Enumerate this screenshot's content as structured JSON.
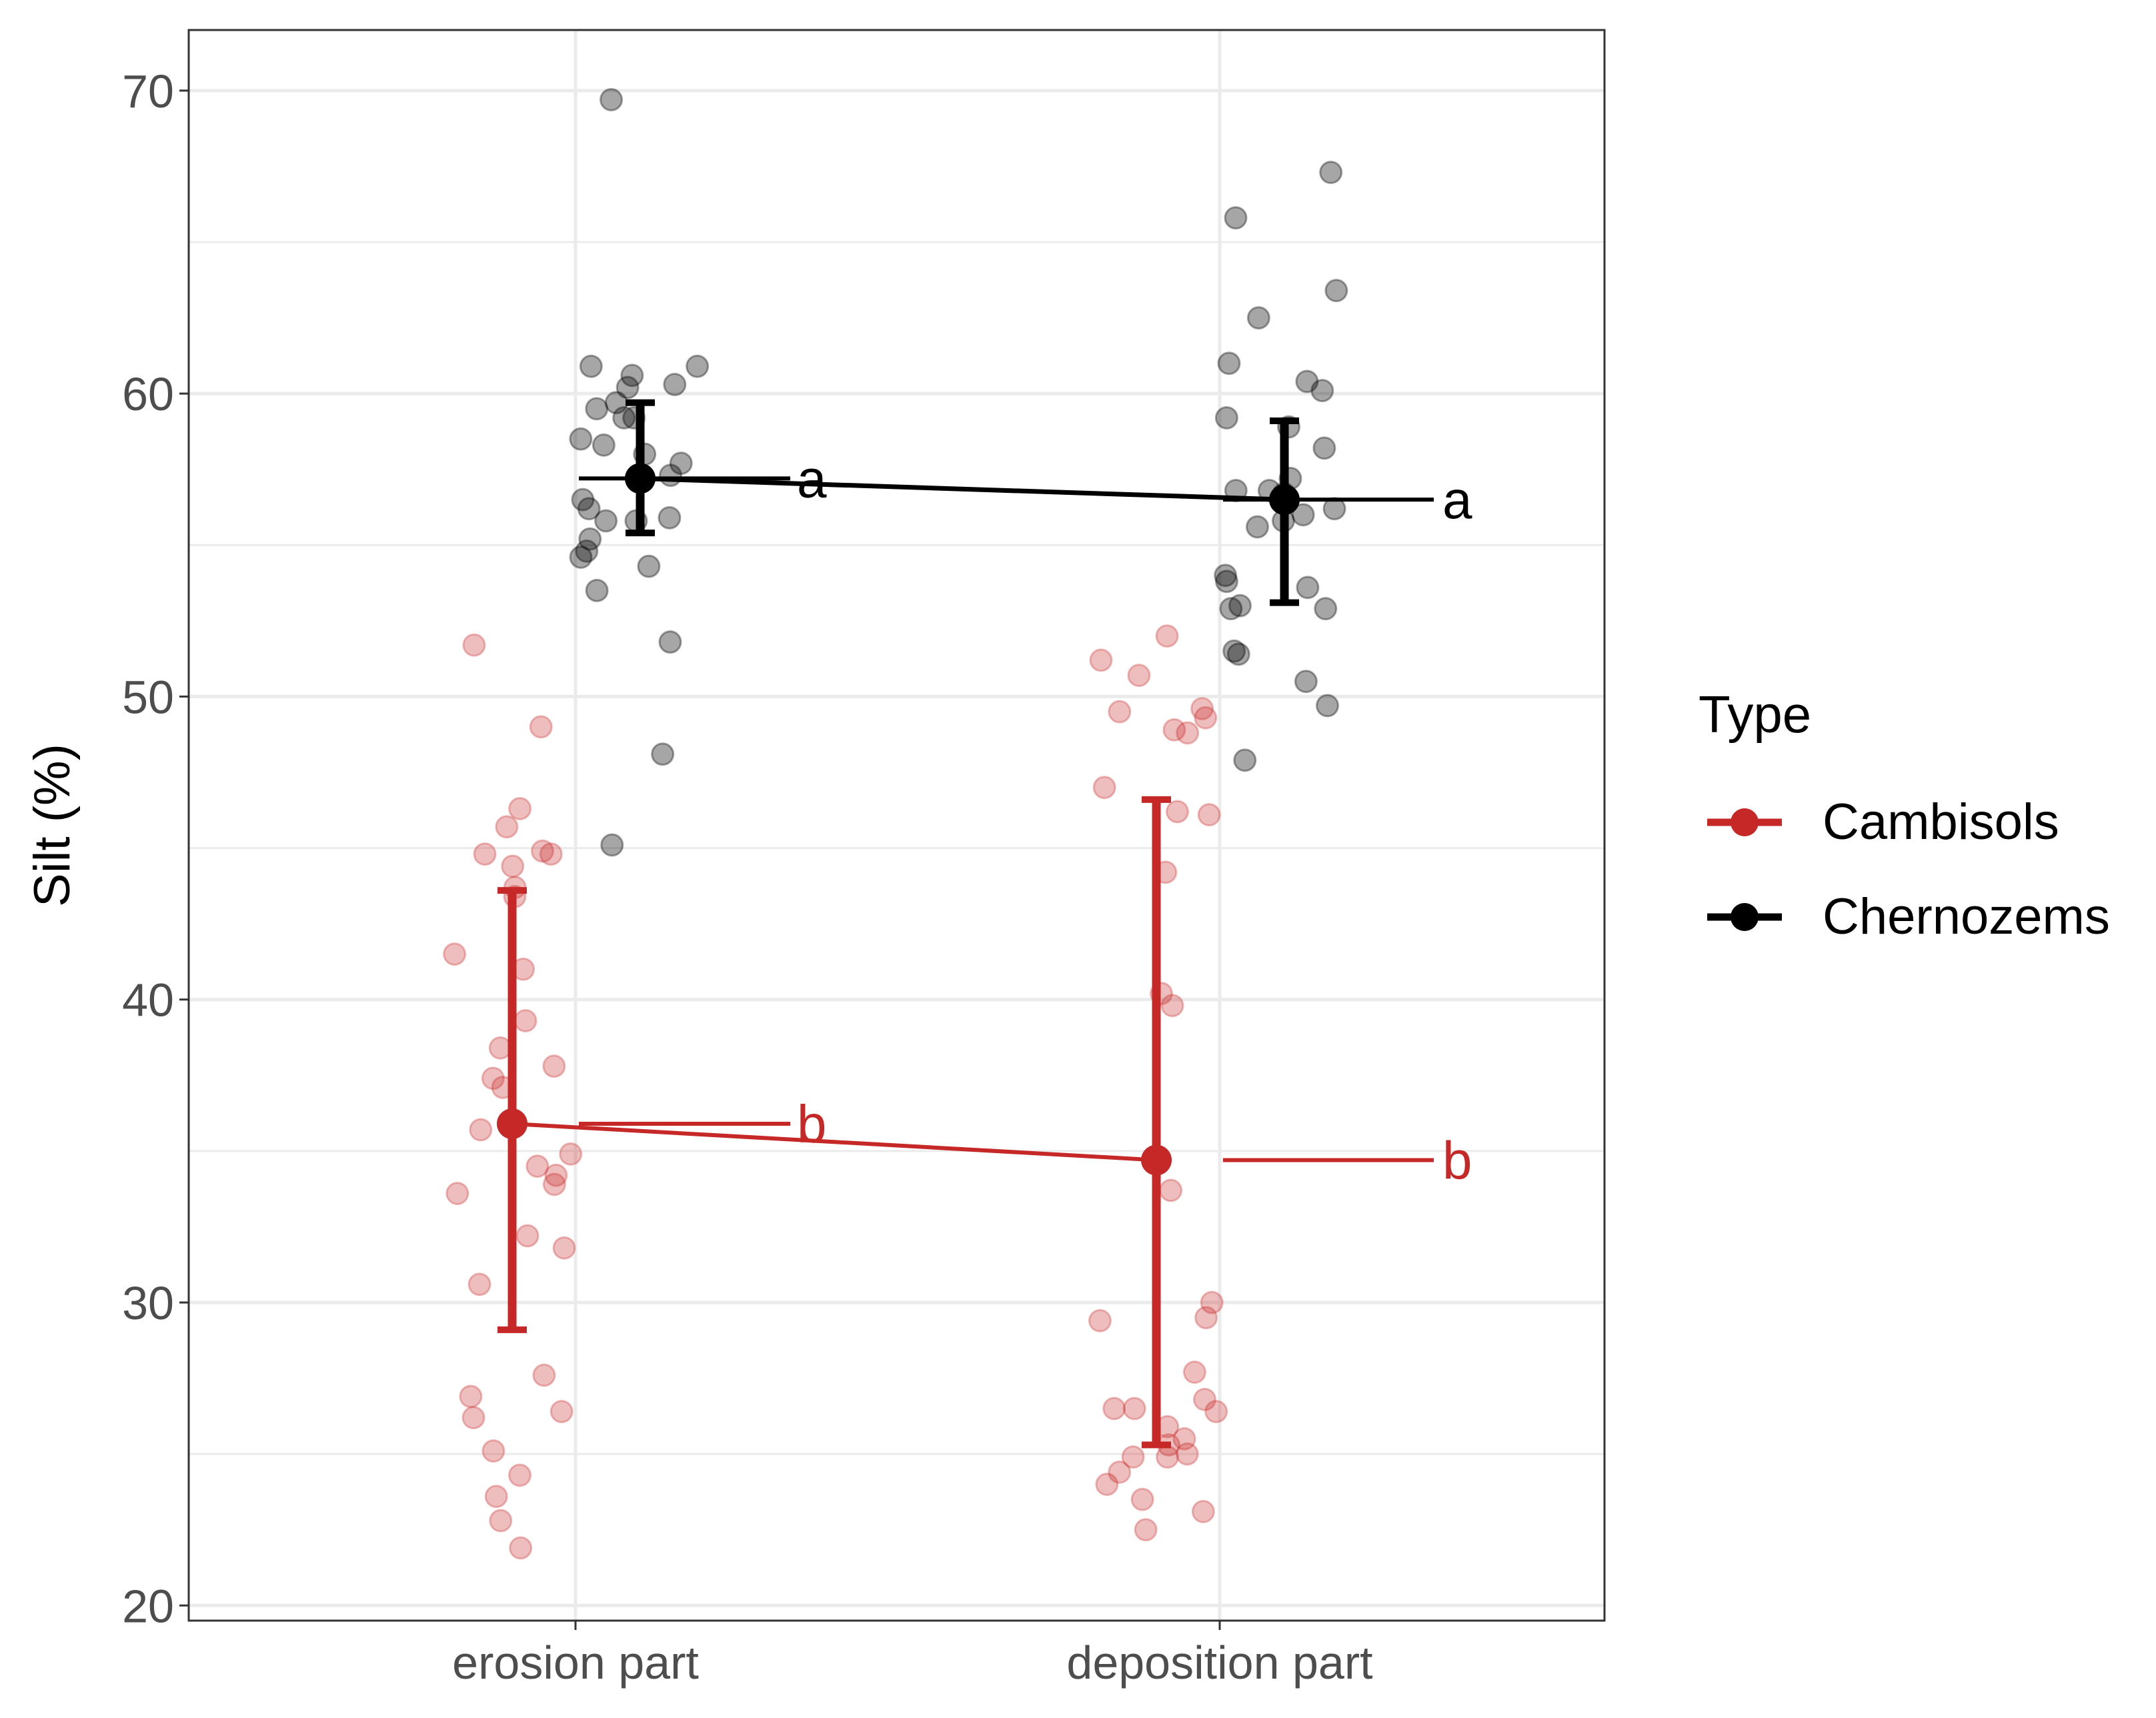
{
  "chart_data": {
    "type": "scatter",
    "title": "",
    "xlabel": "",
    "ylabel": "Silt (%)",
    "categories": [
      "erosion part",
      "deposition part"
    ],
    "ylim": [
      19.5,
      72
    ],
    "yticks": [
      20,
      30,
      40,
      50,
      60,
      70
    ],
    "grid": true,
    "legend": {
      "title": "Type",
      "position": "right",
      "items": [
        {
          "label": "Cambisols",
          "color": "#C62828"
        },
        {
          "label": "Chernozems",
          "color": "#000000"
        }
      ]
    },
    "series": [
      {
        "name": "Cambisols",
        "color": "#C62828",
        "summary": [
          {
            "category": "erosion part",
            "mean": 35.9,
            "lower": 29.1,
            "upper": 43.6,
            "letter": "b"
          },
          {
            "category": "deposition part",
            "mean": 34.7,
            "lower": 25.3,
            "upper": 46.6,
            "letter": "b"
          }
        ],
        "points": [
          {
            "category": "erosion part",
            "values": [
              51.7,
              49.0,
              46.3,
              45.7,
              44.8,
              44.8,
              44.9,
              44.4,
              43.7,
              43.4,
              41.5,
              41.0,
              39.3,
              38.4,
              37.8,
              37.4,
              37.1,
              35.7,
              34.9,
              34.5,
              34.2,
              33.9,
              33.6,
              32.2,
              31.8,
              30.6,
              27.6,
              26.9,
              26.4,
              26.2,
              25.1,
              24.3,
              23.6,
              22.8,
              21.9
            ]
          },
          {
            "category": "deposition part",
            "values": [
              52.0,
              51.2,
              50.7,
              49.6,
              49.5,
              49.3,
              48.9,
              48.8,
              47.0,
              46.2,
              46.1,
              44.2,
              40.2,
              39.8,
              33.7,
              30.0,
              29.5,
              29.4,
              27.7,
              26.8,
              26.5,
              26.5,
              26.4,
              25.9,
              25.5,
              25.3,
              25.0,
              24.9,
              24.9,
              24.4,
              24.0,
              23.5,
              23.1,
              22.5
            ]
          }
        ]
      },
      {
        "name": "Chernozems",
        "color": "#000000",
        "summary": [
          {
            "category": "erosion part",
            "mean": 57.2,
            "lower": 55.4,
            "upper": 59.7,
            "letter": "a"
          },
          {
            "category": "deposition part",
            "mean": 56.5,
            "lower": 53.1,
            "upper": 59.1,
            "letter": "a"
          }
        ],
        "points": [
          {
            "category": "erosion part",
            "values": [
              69.7,
              60.9,
              60.9,
              60.6,
              60.3,
              60.2,
              59.7,
              59.5,
              59.2,
              59.2,
              58.5,
              58.3,
              58.0,
              57.7,
              57.3,
              56.5,
              56.2,
              55.9,
              55.8,
              55.8,
              55.2,
              54.8,
              54.6,
              54.3,
              53.5,
              51.8,
              48.1,
              45.1
            ]
          },
          {
            "category": "deposition part",
            "values": [
              67.3,
              65.8,
              63.4,
              62.5,
              61.0,
              60.4,
              60.1,
              59.2,
              58.9,
              58.2,
              57.2,
              56.8,
              56.8,
              56.7,
              56.2,
              56.0,
              55.8,
              55.6,
              54.0,
              53.8,
              53.6,
              53.0,
              52.9,
              52.9,
              51.5,
              51.4,
              50.5,
              49.7,
              47.9
            ]
          }
        ]
      }
    ]
  }
}
